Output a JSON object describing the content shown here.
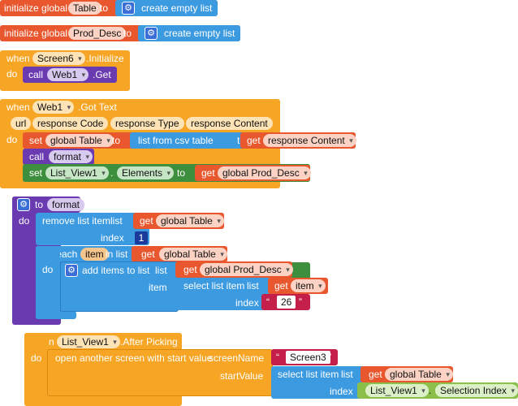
{
  "blocks": {
    "global_table": {
      "init": "initialize global",
      "name": "Table",
      "to": "to",
      "empty": "create empty list"
    },
    "global_prod": {
      "init": "initialize global",
      "name": "Prod_Desc",
      "to": "to",
      "empty": "create empty list"
    },
    "screen_init": {
      "when": "when",
      "component": "Screen6",
      "event": ".Initialize",
      "do": "do",
      "call": "call",
      "call_component": "Web1",
      "call_method": ".Get"
    },
    "got_text": {
      "when": "when",
      "component": "Web1",
      "event": ".Got Text",
      "params": [
        "url",
        "response Code",
        "response Type",
        "response Content"
      ],
      "do": "do",
      "set1": {
        "set": "set",
        "var": "global Table",
        "to": "to",
        "csv": "list from csv table",
        "text": "text",
        "get": "get",
        "get_var": "response Content"
      },
      "call": {
        "call": "call",
        "proc": "format"
      },
      "set2": {
        "set": "set",
        "component": "List_View1",
        "dot": ".",
        "prop": "Elements",
        "to": "to",
        "get": "get",
        "get_var": "global Prod_Desc"
      }
    },
    "proc_format": {
      "to": "to",
      "name": "format",
      "do": "do",
      "remove": {
        "label": "remove list item",
        "list": "list",
        "get": "get",
        "get_var": "global Table",
        "index": "index",
        "index_value": "1"
      },
      "foreach": {
        "for_each": "for each",
        "item": "item",
        "in_list": "in list",
        "get": "get",
        "get_var": "global Table",
        "do": "do",
        "add": {
          "label": "add items to list",
          "list": "list",
          "get": "get",
          "get_var": "global Prod_Desc",
          "item": "item",
          "select": {
            "label": "select list item",
            "list": "list",
            "get": "get",
            "get_var": "item",
            "index": "index",
            "index_value": "26"
          }
        }
      }
    },
    "after_picking": {
      "when": "when",
      "component": "List_View1",
      "event": ".After Picking",
      "do": "do",
      "open": "open another screen with start value",
      "screen_name": "screenName",
      "screen_value": "Screen3",
      "start_value": "startValue",
      "select": {
        "label": "select list item",
        "list": "list",
        "get": "get",
        "get_var": "global Table",
        "index": "index",
        "component": "List_View1",
        "dot": ".",
        "prop": "Selection Index"
      }
    }
  },
  "colors": {
    "variables": "#e8572d",
    "lists": "#3c9ae0",
    "events": "#f6a524",
    "procedures": "#6a3ab1",
    "components": "#3e8f3d",
    "text": "#c41f4b",
    "list_view": "#8ac04a",
    "math": "#1a3b9c"
  },
  "icons": {
    "mutator": "gear-icon",
    "dropdown": "chevron-down-icon"
  }
}
